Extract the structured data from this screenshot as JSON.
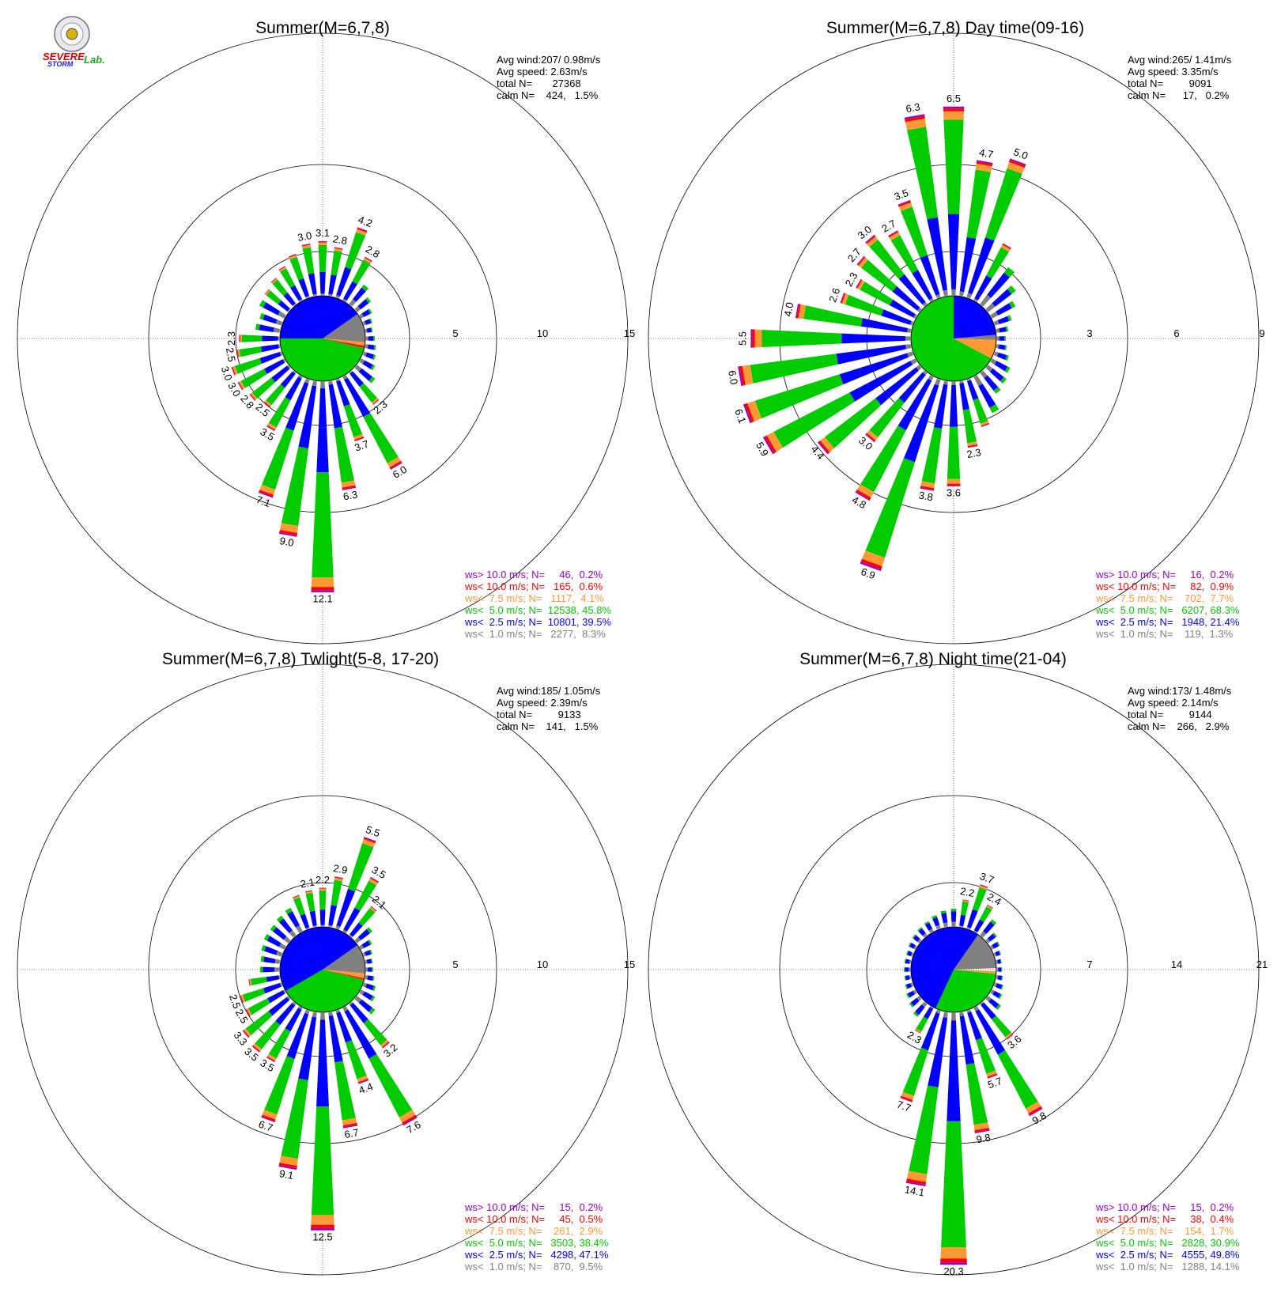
{
  "logo": {
    "text_severe": "SEVERE",
    "text_storm": "STORM",
    "text_lab": "Lab."
  },
  "colors": {
    "gt10": "#9900cc",
    "lt10": "#ff0000",
    "lt7_5": "#ff9933",
    "lt5": "#00cc00",
    "lt2_5": "#0000ff",
    "lt1": "#808080",
    "axis": "#000000"
  },
  "chart_data": [
    {
      "type": "wind-rose",
      "title": "Summer(M=6,7,8)",
      "stats": [
        "Avg wind:207/ 0.98m/s",
        "Avg speed: 2.63m/s",
        "total N=       27368",
        "calm N=    424,   1.5%"
      ],
      "rings": [
        5,
        10,
        15
      ],
      "ring_labels": [
        "5",
        "10",
        "15"
      ],
      "center_pie": [
        {
          "cls": "lt1",
          "from": 55,
          "to": 95
        },
        {
          "cls": "lt7_5",
          "from": 95,
          "to": 100
        },
        {
          "cls": "lt10",
          "from": 100,
          "to": 103
        },
        {
          "cls": "lt5",
          "from": 103,
          "to": 270
        },
        {
          "cls": "lt2_5",
          "from": 270,
          "to": 415
        }
      ],
      "spokes": [
        {
          "dir": 0,
          "total": 3.1,
          "label": "3.1"
        },
        {
          "dir": 10,
          "total": 2.8,
          "label": "2.8"
        },
        {
          "dir": 20,
          "total": 4.2,
          "label": "4.2"
        },
        {
          "dir": 30,
          "total": 2.8,
          "label": "2.8"
        },
        {
          "dir": 40,
          "total": 1.4
        },
        {
          "dir": 50,
          "total": 1.0
        },
        {
          "dir": 60,
          "total": 0.7
        },
        {
          "dir": 70,
          "total": 0.5
        },
        {
          "dir": 80,
          "total": 0.4
        },
        {
          "dir": 90,
          "total": 0.5
        },
        {
          "dir": 100,
          "total": 0.6
        },
        {
          "dir": 110,
          "total": 0.7
        },
        {
          "dir": 120,
          "total": 0.9
        },
        {
          "dir": 130,
          "total": 1.3
        },
        {
          "dir": 140,
          "total": 2.3,
          "label": "2.3"
        },
        {
          "dir": 150,
          "total": 6.0,
          "label": "6.0"
        },
        {
          "dir": 160,
          "total": 3.7,
          "label": "3.7"
        },
        {
          "dir": 170,
          "total": 6.3,
          "label": "6.3"
        },
        {
          "dir": 180,
          "total": 12.1,
          "label": "12.1"
        },
        {
          "dir": 190,
          "total": 9.0,
          "label": "9.0"
        },
        {
          "dir": 200,
          "total": 7.1,
          "label": "7.1"
        },
        {
          "dir": 210,
          "total": 3.5,
          "label": "3.5"
        },
        {
          "dir": 220,
          "total": 2.5,
          "label": "2.5"
        },
        {
          "dir": 230,
          "total": 2.8,
          "label": "2.8"
        },
        {
          "dir": 240,
          "total": 3.0,
          "label": "3.0"
        },
        {
          "dir": 250,
          "total": 3.0,
          "label": "3.0"
        },
        {
          "dir": 260,
          "total": 2.5,
          "label": "2.5"
        },
        {
          "dir": 270,
          "total": 2.3,
          "label": "2.3"
        },
        {
          "dir": 280,
          "total": 1.4
        },
        {
          "dir": 290,
          "total": 1.3
        },
        {
          "dir": 300,
          "total": 1.6
        },
        {
          "dir": 310,
          "total": 1.7
        },
        {
          "dir": 320,
          "total": 1.9
        },
        {
          "dir": 330,
          "total": 2.2
        },
        {
          "dir": 340,
          "total": 2.6
        },
        {
          "dir": 350,
          "total": 3.0,
          "label": "3.0"
        }
      ],
      "legend": [
        {
          "cls": "gt10",
          "text": "ws> 10.0 m/s; N=     46,  0.2%"
        },
        {
          "cls": "lt10",
          "text": "ws< 10.0 m/s; N=   165,  0.6%"
        },
        {
          "cls": "lt7_5",
          "text": "ws<  7.5 m/s; N=   1117,  4.1%"
        },
        {
          "cls": "lt5",
          "text": "ws<  5.0 m/s; N=  12538, 45.8%"
        },
        {
          "cls": "lt2_5",
          "text": "ws<  2.5 m/s; N=  10801, 39.5%"
        },
        {
          "cls": "lt1",
          "text": "ws<  1.0 m/s; N=   2277,  8.3%"
        }
      ]
    },
    {
      "type": "wind-rose",
      "title": "Summer(M=6,7,8) Day time(09-16)",
      "stats": [
        "Avg wind:265/ 1.41m/s",
        "Avg speed: 3.35m/s",
        "total N=         9091",
        "calm N=      17,   0.2%"
      ],
      "rings": [
        3,
        6,
        9
      ],
      "ring_labels": [
        "3",
        "6",
        "9"
      ],
      "center_pie": [
        {
          "cls": "lt1",
          "from": 85,
          "to": 92
        },
        {
          "cls": "lt7_5",
          "from": 92,
          "to": 118
        },
        {
          "cls": "lt5",
          "from": 118,
          "to": 360
        },
        {
          "cls": "lt2_5",
          "from": 0,
          "to": 85
        }
      ],
      "spokes": [
        {
          "dir": 0,
          "total": 6.5,
          "label": "6.5"
        },
        {
          "dir": 10,
          "total": 4.7,
          "label": "4.7"
        },
        {
          "dir": 20,
          "total": 5.0,
          "label": "5.0"
        },
        {
          "dir": 30,
          "total": 2.2
        },
        {
          "dir": 40,
          "total": 1.6
        },
        {
          "dir": 50,
          "total": 1.2
        },
        {
          "dir": 60,
          "total": 0.9
        },
        {
          "dir": 70,
          "total": 0.6
        },
        {
          "dir": 80,
          "total": 0.4
        },
        {
          "dir": 90,
          "total": 0.3
        },
        {
          "dir": 100,
          "total": 0.35
        },
        {
          "dir": 110,
          "total": 0.5
        },
        {
          "dir": 120,
          "total": 0.7
        },
        {
          "dir": 130,
          "total": 0.8
        },
        {
          "dir": 140,
          "total": 0.9
        },
        {
          "dir": 150,
          "total": 1.4
        },
        {
          "dir": 160,
          "total": 1.7
        },
        {
          "dir": 170,
          "total": 2.3,
          "label": "2.3"
        },
        {
          "dir": 180,
          "total": 3.6,
          "label": "3.6"
        },
        {
          "dir": 190,
          "total": 3.8,
          "label": "3.8"
        },
        {
          "dir": 200,
          "total": 6.9,
          "label": "6.9"
        },
        {
          "dir": 210,
          "total": 4.8,
          "label": "4.8"
        },
        {
          "dir": 220,
          "total": 3.0,
          "label": "3.0"
        },
        {
          "dir": 230,
          "total": 4.4,
          "label": "4.4"
        },
        {
          "dir": 240,
          "total": 5.9,
          "label": "5.9"
        },
        {
          "dir": 250,
          "total": 6.1,
          "label": "6.1"
        },
        {
          "dir": 260,
          "total": 6.0,
          "label": "6.0"
        },
        {
          "dir": 270,
          "total": 5.5,
          "label": "5.5"
        },
        {
          "dir": 280,
          "total": 4.0,
          "label": "4.0"
        },
        {
          "dir": 290,
          "total": 2.6,
          "label": "2.6"
        },
        {
          "dir": 300,
          "total": 2.3,
          "label": "2.3"
        },
        {
          "dir": 310,
          "total": 2.7,
          "label": "2.7"
        },
        {
          "dir": 320,
          "total": 3.0,
          "label": "3.0"
        },
        {
          "dir": 330,
          "total": 2.7,
          "label": "2.7"
        },
        {
          "dir": 340,
          "total": 3.5,
          "label": "3.5"
        },
        {
          "dir": 350,
          "total": 6.3,
          "label": "6.3"
        }
      ],
      "legend": [
        {
          "cls": "gt10",
          "text": "ws> 10.0 m/s; N=     16,  0.2%"
        },
        {
          "cls": "lt10",
          "text": "ws< 10.0 m/s; N=     82,  0.9%"
        },
        {
          "cls": "lt7_5",
          "text": "ws<  7.5 m/s; N=    702,  7.7%"
        },
        {
          "cls": "lt5",
          "text": "ws<  5.0 m/s; N=   6207, 68.3%"
        },
        {
          "cls": "lt2_5",
          "text": "ws<  2.5 m/s; N=   1948, 21.4%"
        },
        {
          "cls": "lt1",
          "text": "ws<  1.0 m/s; N=    119,  1.3%"
        }
      ]
    },
    {
      "type": "wind-rose",
      "title": "Summer(M=6,7,8) Twlight(5-8, 17-20)",
      "stats": [
        "Avg wind:185/ 1.05m/s",
        "Avg speed: 2.39m/s",
        "total N=         9133",
        "calm N=    141,   1.5%"
      ],
      "rings": [
        5,
        10,
        15
      ],
      "ring_labels": [
        "5",
        "10",
        "15"
      ],
      "center_pie": [
        {
          "cls": "lt1",
          "from": 55,
          "to": 95
        },
        {
          "cls": "lt7_5",
          "from": 95,
          "to": 102
        },
        {
          "cls": "lt10",
          "from": 102,
          "to": 104
        },
        {
          "cls": "lt5",
          "from": 104,
          "to": 240
        },
        {
          "cls": "lt2_5",
          "from": 240,
          "to": 415
        }
      ],
      "spokes": [
        {
          "dir": 0,
          "total": 2.2,
          "label": "2.2"
        },
        {
          "dir": 10,
          "total": 2.9,
          "label": "2.9"
        },
        {
          "dir": 20,
          "total": 5.5,
          "label": "5.5"
        },
        {
          "dir": 30,
          "total": 3.5,
          "label": "3.5"
        },
        {
          "dir": 40,
          "total": 2.1,
          "label": "2.1"
        },
        {
          "dir": 50,
          "total": 1.1
        },
        {
          "dir": 60,
          "total": 0.7
        },
        {
          "dir": 70,
          "total": 0.5
        },
        {
          "dir": 80,
          "total": 0.4
        },
        {
          "dir": 90,
          "total": 0.4
        },
        {
          "dir": 100,
          "total": 0.5
        },
        {
          "dir": 110,
          "total": 0.7
        },
        {
          "dir": 120,
          "total": 0.9
        },
        {
          "dir": 130,
          "total": 1.3
        },
        {
          "dir": 140,
          "total": 3.2,
          "label": "3.2"
        },
        {
          "dir": 150,
          "total": 7.6,
          "label": "7.6"
        },
        {
          "dir": 160,
          "total": 4.4,
          "label": "4.4"
        },
        {
          "dir": 170,
          "total": 6.7,
          "label": "6.7"
        },
        {
          "dir": 180,
          "total": 12.5,
          "label": "12.5"
        },
        {
          "dir": 190,
          "total": 9.1,
          "label": "9.1"
        },
        {
          "dir": 200,
          "total": 6.7,
          "label": "6.7"
        },
        {
          "dir": 210,
          "total": 3.5,
          "label": "3.5"
        },
        {
          "dir": 220,
          "total": 3.5,
          "label": "3.5"
        },
        {
          "dir": 230,
          "total": 3.3,
          "label": "3.3"
        },
        {
          "dir": 240,
          "total": 2.5,
          "label": "2.5"
        },
        {
          "dir": 250,
          "total": 2.5,
          "label": "2.5"
        },
        {
          "dir": 260,
          "total": 1.8
        },
        {
          "dir": 270,
          "total": 1.1
        },
        {
          "dir": 280,
          "total": 1.1
        },
        {
          "dir": 290,
          "total": 1.2
        },
        {
          "dir": 300,
          "total": 1.3
        },
        {
          "dir": 310,
          "total": 1.3
        },
        {
          "dir": 320,
          "total": 1.4
        },
        {
          "dir": 330,
          "total": 1.5
        },
        {
          "dir": 340,
          "total": 2.0
        },
        {
          "dir": 350,
          "total": 2.1,
          "label": "2.1"
        }
      ],
      "legend": [
        {
          "cls": "gt10",
          "text": "ws> 10.0 m/s; N=     15,  0.2%"
        },
        {
          "cls": "lt10",
          "text": "ws< 10.0 m/s; N=     45,  0.5%"
        },
        {
          "cls": "lt7_5",
          "text": "ws<  7.5 m/s; N=    261,  2.9%"
        },
        {
          "cls": "lt5",
          "text": "ws<  5.0 m/s; N=   3503, 38.4%"
        },
        {
          "cls": "lt2_5",
          "text": "ws<  2.5 m/s; N=   4298, 47.1%"
        },
        {
          "cls": "lt1",
          "text": "ws<  1.0 m/s; N=    870,  9.5%"
        }
      ]
    },
    {
      "type": "wind-rose",
      "title": "Summer(M=6,7,8) Night time(21-04)",
      "stats": [
        "Avg wind:173/ 1.48m/s",
        "Avg speed: 2.14m/s",
        "total N=         9144",
        "calm N=    266,   2.9%"
      ],
      "rings": [
        7,
        14,
        21
      ],
      "ring_labels": [
        "7",
        "14",
        "21"
      ],
      "center_pie": [
        {
          "cls": "lt1",
          "from": 35,
          "to": 88
        },
        {
          "cls": "lt7_5",
          "from": 92,
          "to": 96
        },
        {
          "cls": "lt5",
          "from": 96,
          "to": 205
        },
        {
          "cls": "lt2_5",
          "from": 205,
          "to": 395
        }
      ],
      "spokes": [
        {
          "dir": 0,
          "total": 1.4
        },
        {
          "dir": 10,
          "total": 2.2,
          "label": "2.2"
        },
        {
          "dir": 20,
          "total": 3.7,
          "label": "3.7"
        },
        {
          "dir": 30,
          "total": 2.4,
          "label": "2.4"
        },
        {
          "dir": 40,
          "total": 1.6
        },
        {
          "dir": 50,
          "total": 0.9
        },
        {
          "dir": 60,
          "total": 0.7
        },
        {
          "dir": 70,
          "total": 0.5
        },
        {
          "dir": 80,
          "total": 0.4
        },
        {
          "dir": 90,
          "total": 0.4
        },
        {
          "dir": 100,
          "total": 0.5
        },
        {
          "dir": 110,
          "total": 0.7
        },
        {
          "dir": 120,
          "total": 0.9
        },
        {
          "dir": 130,
          "total": 1.3
        },
        {
          "dir": 140,
          "total": 3.6,
          "label": "3.6"
        },
        {
          "dir": 150,
          "total": 9.8,
          "label": "9.8"
        },
        {
          "dir": 160,
          "total": 5.7,
          "label": "5.7"
        },
        {
          "dir": 170,
          "total": 9.8,
          "label": "9.8"
        },
        {
          "dir": 180,
          "total": 20.3,
          "label": "20.3"
        },
        {
          "dir": 190,
          "total": 14.1,
          "label": "14.1"
        },
        {
          "dir": 200,
          "total": 7.7,
          "label": "7.7"
        },
        {
          "dir": 210,
          "total": 2.3,
          "label": "2.3"
        },
        {
          "dir": 220,
          "total": 1.3
        },
        {
          "dir": 230,
          "total": 1.0
        },
        {
          "dir": 240,
          "total": 0.8
        },
        {
          "dir": 250,
          "total": 0.6
        },
        {
          "dir": 260,
          "total": 0.5
        },
        {
          "dir": 270,
          "total": 0.5
        },
        {
          "dir": 280,
          "total": 0.5
        },
        {
          "dir": 290,
          "total": 0.5
        },
        {
          "dir": 300,
          "total": 0.6
        },
        {
          "dir": 310,
          "total": 0.7
        },
        {
          "dir": 320,
          "total": 0.8
        },
        {
          "dir": 330,
          "total": 0.9
        },
        {
          "dir": 340,
          "total": 1.1
        },
        {
          "dir": 350,
          "total": 1.3
        }
      ],
      "legend": [
        {
          "cls": "gt10",
          "text": "ws> 10.0 m/s; N=     15,  0.2%"
        },
        {
          "cls": "lt10",
          "text": "ws< 10.0 m/s; N=     38,  0.4%"
        },
        {
          "cls": "lt7_5",
          "text": "ws<  7.5 m/s; N=    154,  1.7%"
        },
        {
          "cls": "lt5",
          "text": "ws<  5.0 m/s; N=   2828, 30.9%"
        },
        {
          "cls": "lt2_5",
          "text": "ws<  2.5 m/s; N=   4555, 49.8%"
        },
        {
          "cls": "lt1",
          "text": "ws<  1.0 m/s; N=   1288, 14.1%"
        }
      ]
    }
  ]
}
